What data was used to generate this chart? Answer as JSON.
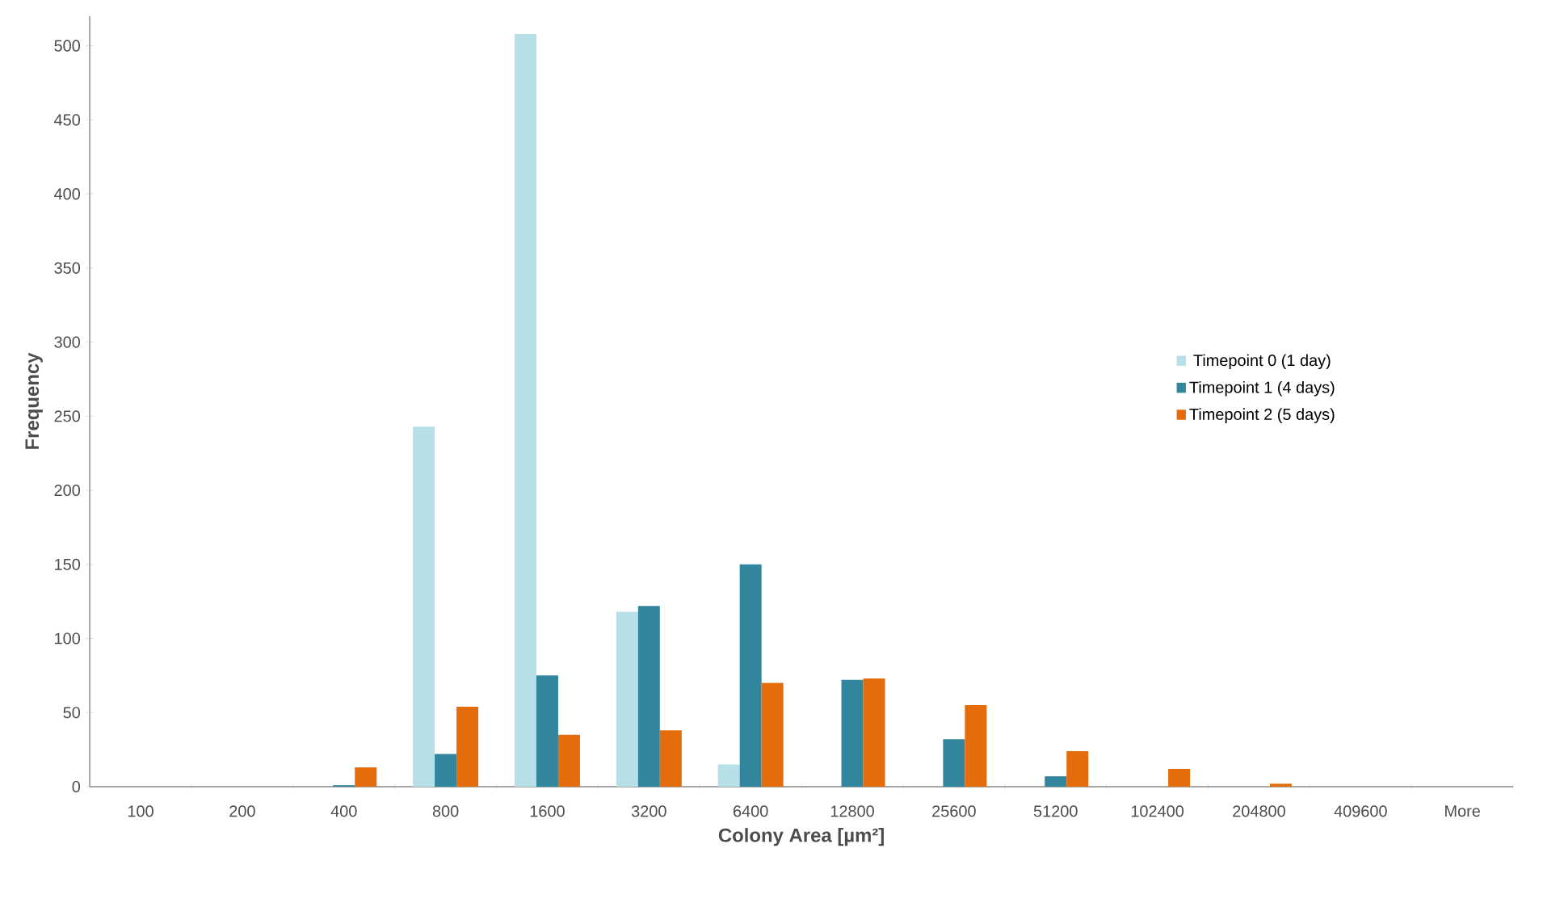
{
  "chart_data": {
    "type": "bar",
    "xlabel": "Colony Area [µm²]",
    "ylabel": "Frequency",
    "categories": [
      "100",
      "200",
      "400",
      "800",
      "1600",
      "3200",
      "6400",
      "12800",
      "25600",
      "51200",
      "102400",
      "204800",
      "409600",
      "More"
    ],
    "series": [
      {
        "name": "Timepoint 0 (1 day)",
        "color": "#b7dfe8",
        "values": [
          0,
          0,
          0,
          243,
          508,
          118,
          15,
          0,
          0,
          0,
          0,
          0,
          0,
          0
        ]
      },
      {
        "name": "Timepoint 1 (4 days)",
        "color": "#31859c",
        "values": [
          0,
          0,
          1,
          22,
          75,
          122,
          150,
          72,
          32,
          7,
          0,
          0,
          0,
          0
        ]
      },
      {
        "name": "Timepoint 2 (5 days)",
        "color": "#e46c0a",
        "values": [
          0,
          0,
          13,
          54,
          35,
          38,
          70,
          73,
          55,
          24,
          12,
          2,
          0,
          0
        ]
      }
    ],
    "ylim": [
      0,
      520
    ],
    "yticks": [
      0,
      50,
      100,
      150,
      200,
      250,
      300,
      350,
      400,
      450,
      500
    ],
    "grid": false,
    "legend": "right"
  }
}
